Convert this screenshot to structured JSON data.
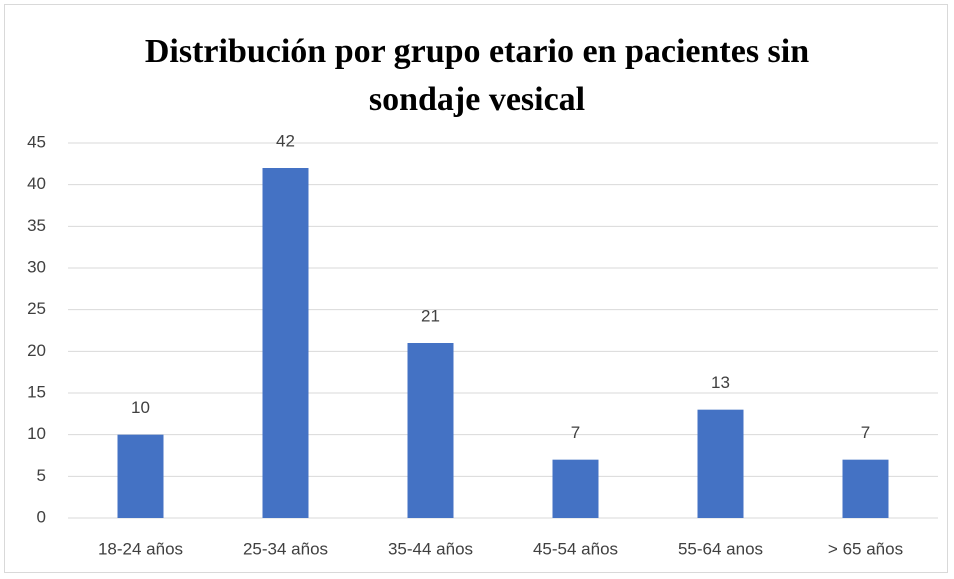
{
  "chart_data": {
    "type": "bar",
    "title": "Distribución por grupo etario en pacientes sin sondaje vesical",
    "categories": [
      "18-24 años",
      "25-34 años",
      "35-44 años",
      "45-54 años",
      "55-64 anos",
      "> 65 años"
    ],
    "values": [
      10,
      42,
      21,
      7,
      13,
      7
    ],
    "color": "#4472c4",
    "ylim": [
      0,
      45
    ],
    "yticks": [
      0,
      5,
      10,
      15,
      20,
      25,
      30,
      35,
      40,
      45
    ],
    "grid": true
  }
}
